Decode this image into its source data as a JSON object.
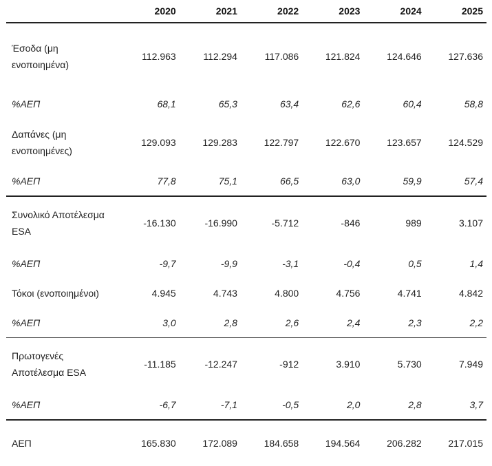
{
  "years": [
    "2020",
    "2021",
    "2022",
    "2023",
    "2024",
    "2025"
  ],
  "rows": [
    {
      "label": "Έσοδα (μη ενοποιημένα)",
      "values": [
        "112.963",
        "112.294",
        "117.086",
        "121.824",
        "124.646",
        "127.636"
      ]
    },
    {
      "label": "%ΑΕΠ",
      "values": [
        "68,1",
        "65,3",
        "63,4",
        "62,6",
        "60,4",
        "58,8"
      ]
    },
    {
      "label": "Δαπάνες (μη ενοποιημένες)",
      "values": [
        "129.093",
        "129.283",
        "122.797",
        "122.670",
        "123.657",
        "124.529"
      ]
    },
    {
      "label": "%ΑΕΠ",
      "values": [
        "77,8",
        "75,1",
        "66,5",
        "63,0",
        "59,9",
        "57,4"
      ]
    },
    {
      "label": "Συνολικό Αποτέλεσμα ESA",
      "values": [
        "-16.130",
        "-16.990",
        "-5.712",
        "-846",
        "989",
        "3.107"
      ]
    },
    {
      "label": "%ΑΕΠ",
      "values": [
        "-9,7",
        "-9,9",
        "-3,1",
        "-0,4",
        "0,5",
        "1,4"
      ]
    },
    {
      "label": "Τόκοι (ενοποιημένοι)",
      "values": [
        "4.945",
        "4.743",
        "4.800",
        "4.756",
        "4.741",
        "4.842"
      ]
    },
    {
      "label": "%ΑΕΠ",
      "values": [
        "3,0",
        "2,8",
        "2,6",
        "2,4",
        "2,3",
        "2,2"
      ]
    },
    {
      "label": "Πρωτογενές Αποτέλεσμα ESA",
      "values": [
        "-11.185",
        "-12.247",
        "-912",
        "3.910",
        "5.730",
        "7.949"
      ]
    },
    {
      "label": "%ΑΕΠ",
      "values": [
        "-6,7",
        "-7,1",
        "-0,5",
        "2,0",
        "2,8",
        "3,7"
      ]
    },
    {
      "label": "ΑΕΠ",
      "values": [
        "165.830",
        "172.089",
        "184.658",
        "194.564",
        "206.282",
        "217.015"
      ]
    }
  ]
}
